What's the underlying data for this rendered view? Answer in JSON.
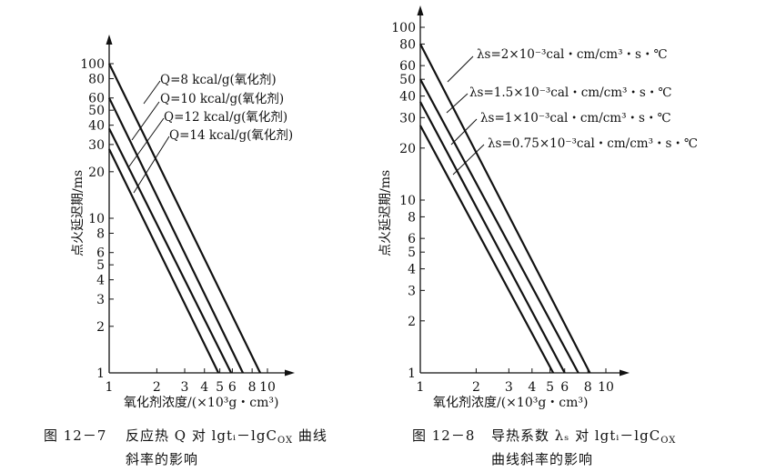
{
  "chart_data": [
    {
      "type": "line",
      "title": "",
      "xlabel": "氧化剂浓度/(×10³g・cm³)",
      "ylabel": "点火延迟期/ms",
      "xscale": "log",
      "yscale": "log",
      "xlim": [
        1,
        10
      ],
      "ylim": [
        1,
        100
      ],
      "xticks": [
        1,
        2,
        3,
        4,
        5,
        6,
        8,
        10
      ],
      "yticks": [
        1,
        2,
        3,
        4,
        5,
        6,
        8,
        10,
        20,
        30,
        40,
        50,
        60,
        80,
        100
      ],
      "xtick_labels": [
        "1",
        "2",
        "3",
        "4",
        "5",
        "6",
        "8",
        "10"
      ],
      "ytick_labels": [
        "1",
        "2",
        "3",
        "4",
        "5",
        "6",
        "8",
        "10",
        "20",
        "30",
        "40",
        "50",
        "60",
        "80",
        "100"
      ],
      "grid": false,
      "series": [
        {
          "name": "Q=8 kcal/g(氧化剂)",
          "x": [
            1,
            9.0
          ],
          "y": [
            100,
            1
          ]
        },
        {
          "name": "Q=10 kcal/g(氧化剂)",
          "x": [
            1,
            7.0
          ],
          "y": [
            60,
            1
          ]
        },
        {
          "name": "Q=12 kcal/g(氧化剂)",
          "x": [
            1,
            5.9
          ],
          "y": [
            38,
            1
          ]
        },
        {
          "name": "Q=14 kcal/g(氧化剂)",
          "x": [
            1,
            4.9
          ],
          "y": [
            28,
            1
          ]
        }
      ],
      "caption": [
        "图 12－7",
        "反应热 Q 对 lgtᵢ－lgC",
        "OX",
        " 曲线",
        "斜率的影响"
      ]
    },
    {
      "type": "line",
      "title": "",
      "xlabel": "氧化剂浓度/(×10³g・cm³)",
      "ylabel": "点火延迟期/ms",
      "xscale": "log",
      "yscale": "log",
      "xlim": [
        1,
        10
      ],
      "ylim": [
        1,
        100
      ],
      "xticks": [
        1,
        2,
        3,
        4,
        5,
        6,
        8,
        10
      ],
      "yticks": [
        1,
        2,
        3,
        4,
        5,
        6,
        8,
        10,
        20,
        30,
        40,
        50,
        60,
        80,
        100
      ],
      "xtick_labels": [
        "1",
        "2",
        "3",
        "4",
        "5",
        "6",
        "8",
        "10"
      ],
      "ytick_labels": [
        "1",
        "2",
        "3",
        "4",
        "5",
        "6",
        "8",
        "10",
        "20",
        "30",
        "40",
        "50",
        "60",
        "80",
        "100"
      ],
      "grid": false,
      "series": [
        {
          "name": "λs=2×10⁻³cal・cm/cm³・s・℃",
          "x": [
            1,
            8.2
          ],
          "y": [
            80,
            1
          ]
        },
        {
          "name": "λs=1.5×10⁻³cal・cm/cm³・s・℃",
          "x": [
            1,
            7.1
          ],
          "y": [
            50,
            1
          ]
        },
        {
          "name": "λs=1×10⁻³cal・cm/cm³・s・℃",
          "x": [
            1,
            6.0
          ],
          "y": [
            37,
            1
          ]
        },
        {
          "name": "λs=0.75×10⁻³cal・cm/cm³・s・℃",
          "x": [
            1,
            5.2
          ],
          "y": [
            27,
            1
          ]
        }
      ],
      "caption": [
        "图 12－8",
        "导热系数 λₛ 对 lgtᵢ－lgC",
        "OX",
        "曲线斜率的影响"
      ]
    }
  ]
}
